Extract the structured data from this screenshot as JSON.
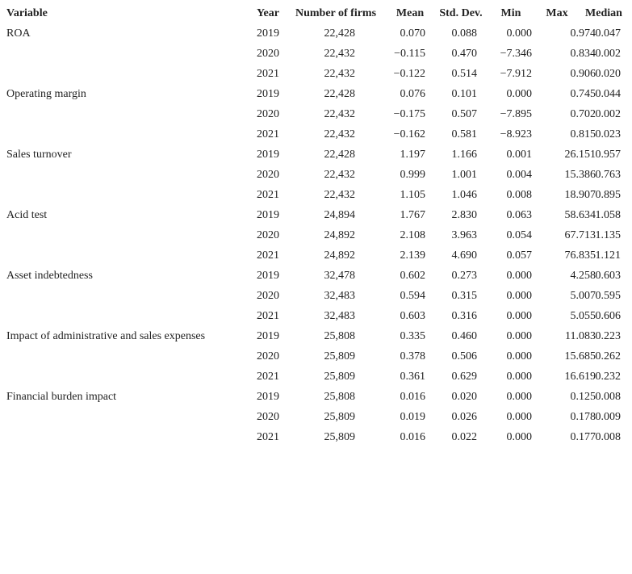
{
  "table": {
    "header": [
      "Variable",
      "Year",
      "Number of firms",
      "Mean",
      "Std. Dev.",
      "Min",
      "Max",
      "Median"
    ],
    "groups": [
      {
        "variable": "ROA",
        "rows": [
          [
            "2019",
            "22,428",
            "0.070",
            "0.088",
            "0.000",
            "0.974",
            "0.047"
          ],
          [
            "2020",
            "22,432",
            "−0.115",
            "0.470",
            "−7.346",
            "0.834",
            "0.002"
          ],
          [
            "2021",
            "22,432",
            "−0.122",
            "0.514",
            "−7.912",
            "0.906",
            "0.020"
          ]
        ]
      },
      {
        "variable": "Operating margin",
        "rows": [
          [
            "2019",
            "22,428",
            "0.076",
            "0.101",
            "0.000",
            "0.745",
            "0.044"
          ],
          [
            "2020",
            "22,432",
            "−0.175",
            "0.507",
            "−7.895",
            "0.702",
            "0.002"
          ],
          [
            "2021",
            "22,432",
            "−0.162",
            "0.581",
            "−8.923",
            "0.815",
            "0.023"
          ]
        ]
      },
      {
        "variable": "Sales turnover",
        "rows": [
          [
            "2019",
            "22,428",
            "1.197",
            "1.166",
            "0.001",
            "26.151",
            "0.957"
          ],
          [
            "2020",
            "22,432",
            "0.999",
            "1.001",
            "0.004",
            "15.386",
            "0.763"
          ],
          [
            "2021",
            "22,432",
            "1.105",
            "1.046",
            "0.008",
            "18.907",
            "0.895"
          ]
        ]
      },
      {
        "variable": "Acid test",
        "rows": [
          [
            "2019",
            "24,894",
            "1.767",
            "2.830",
            "0.063",
            "58.634",
            "1.058"
          ],
          [
            "2020",
            "24,892",
            "2.108",
            "3.963",
            "0.054",
            "67.713",
            "1.135"
          ],
          [
            "2021",
            "24,892",
            "2.139",
            "4.690",
            "0.057",
            "76.835",
            "1.121"
          ]
        ]
      },
      {
        "variable": "Asset indebtedness",
        "rows": [
          [
            "2019",
            "32,478",
            "0.602",
            "0.273",
            "0.000",
            "4.258",
            "0.603"
          ],
          [
            "2020",
            "32,483",
            "0.594",
            "0.315",
            "0.000",
            "5.007",
            "0.595"
          ],
          [
            "2021",
            "32,483",
            "0.603",
            "0.316",
            "0.000",
            "5.055",
            "0.606"
          ]
        ]
      },
      {
        "variable": "Impact of administrative and sales expenses",
        "rows": [
          [
            "2019",
            "25,808",
            "0.335",
            "0.460",
            "0.000",
            "11.083",
            "0.223"
          ],
          [
            "2020",
            "25,809",
            "0.378",
            "0.506",
            "0.000",
            "15.685",
            "0.262"
          ],
          [
            "2021",
            "25,809",
            "0.361",
            "0.629",
            "0.000",
            "16.619",
            "0.232"
          ]
        ]
      },
      {
        "variable": "Financial burden impact",
        "rows": [
          [
            "2019",
            "25,808",
            "0.016",
            "0.020",
            "0.000",
            "0.125",
            "0.008"
          ],
          [
            "2020",
            "25,809",
            "0.019",
            "0.026",
            "0.000",
            "0.178",
            "0.009"
          ],
          [
            "2021",
            "25,809",
            "0.016",
            "0.022",
            "0.000",
            "0.177",
            "0.008"
          ]
        ]
      }
    ]
  }
}
